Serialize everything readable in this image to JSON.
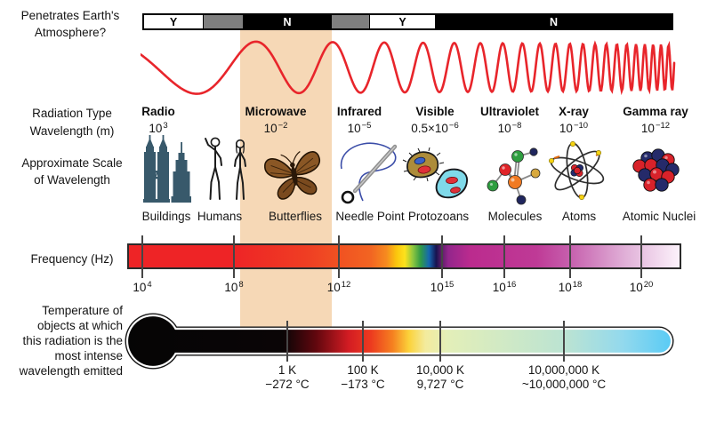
{
  "atmosphere": {
    "row_label_line1": "Penetrates Earth's",
    "row_label_line2": "Atmosphere?",
    "segments": [
      {
        "answer": "Y",
        "penetration": "yes"
      },
      {
        "answer": "",
        "penetration": "partial"
      },
      {
        "answer": "N",
        "penetration": "no"
      },
      {
        "answer": "",
        "penetration": "partial"
      },
      {
        "answer": "Y",
        "penetration": "yes"
      },
      {
        "answer": "N",
        "penetration": "no"
      }
    ]
  },
  "radiation": {
    "row_label_line1": "Radiation Type",
    "row_label_line2": "Wavelength (m)",
    "types": [
      {
        "name": "Radio",
        "wavelength_base": "10",
        "wavelength_exp": "3"
      },
      {
        "name": "Microwave",
        "wavelength_base": "10",
        "wavelength_exp": "−2",
        "highlighted": true
      },
      {
        "name": "Infrared",
        "wavelength_base": "10",
        "wavelength_exp": "−5"
      },
      {
        "name": "Visible",
        "wavelength_base": "0.5×10",
        "wavelength_exp": "−6"
      },
      {
        "name": "Ultraviolet",
        "wavelength_base": "10",
        "wavelength_exp": "−8"
      },
      {
        "name": "X-ray",
        "wavelength_base": "10",
        "wavelength_exp": "−10"
      },
      {
        "name": "Gamma ray",
        "wavelength_base": "10",
        "wavelength_exp": "−12"
      }
    ]
  },
  "scale": {
    "row_label_line1": "Approximate Scale",
    "row_label_line2": "of Wavelength",
    "items": [
      {
        "label": "Buildings",
        "icon": "buildings-icon"
      },
      {
        "label": "Humans",
        "icon": "humans-icon"
      },
      {
        "label": "Butterflies",
        "icon": "butterfly-icon"
      },
      {
        "label": "Needle Point",
        "icon": "needle-icon"
      },
      {
        "label": "Protozoans",
        "icon": "protozoans-icon"
      },
      {
        "label": "Molecules",
        "icon": "molecules-icon"
      },
      {
        "label": "Atoms",
        "icon": "atom-icon"
      },
      {
        "label": "Atomic Nuclei",
        "icon": "atomic-nuclei-icon"
      }
    ]
  },
  "frequency": {
    "row_label": "Frequency (Hz)",
    "ticks": [
      {
        "base": "10",
        "exp": "4"
      },
      {
        "base": "10",
        "exp": "8"
      },
      {
        "base": "10",
        "exp": "12"
      },
      {
        "base": "10",
        "exp": "15"
      },
      {
        "base": "10",
        "exp": "16"
      },
      {
        "base": "10",
        "exp": "18"
      },
      {
        "base": "10",
        "exp": "20"
      }
    ]
  },
  "temperature": {
    "row_label_lines": [
      "Temperature of",
      "objects at which",
      "this radiation is the",
      "most intense",
      "wavelength emitted"
    ],
    "ticks": [
      {
        "kelvin": "1 K",
        "celsius": "−272 °C"
      },
      {
        "kelvin": "100 K",
        "celsius": "−173 °C"
      },
      {
        "kelvin": "10,000 K",
        "celsius": "9,727 °C"
      },
      {
        "kelvin": "10,000,000 K",
        "celsius": "~10,000,000 °C"
      }
    ]
  },
  "highlight": {
    "band": "Microwave",
    "color": "#f6d8b6"
  },
  "colors": {
    "wave": "#e8252b",
    "atmosphere_partial": "#7f7f7f",
    "buildings": "#38596b"
  }
}
